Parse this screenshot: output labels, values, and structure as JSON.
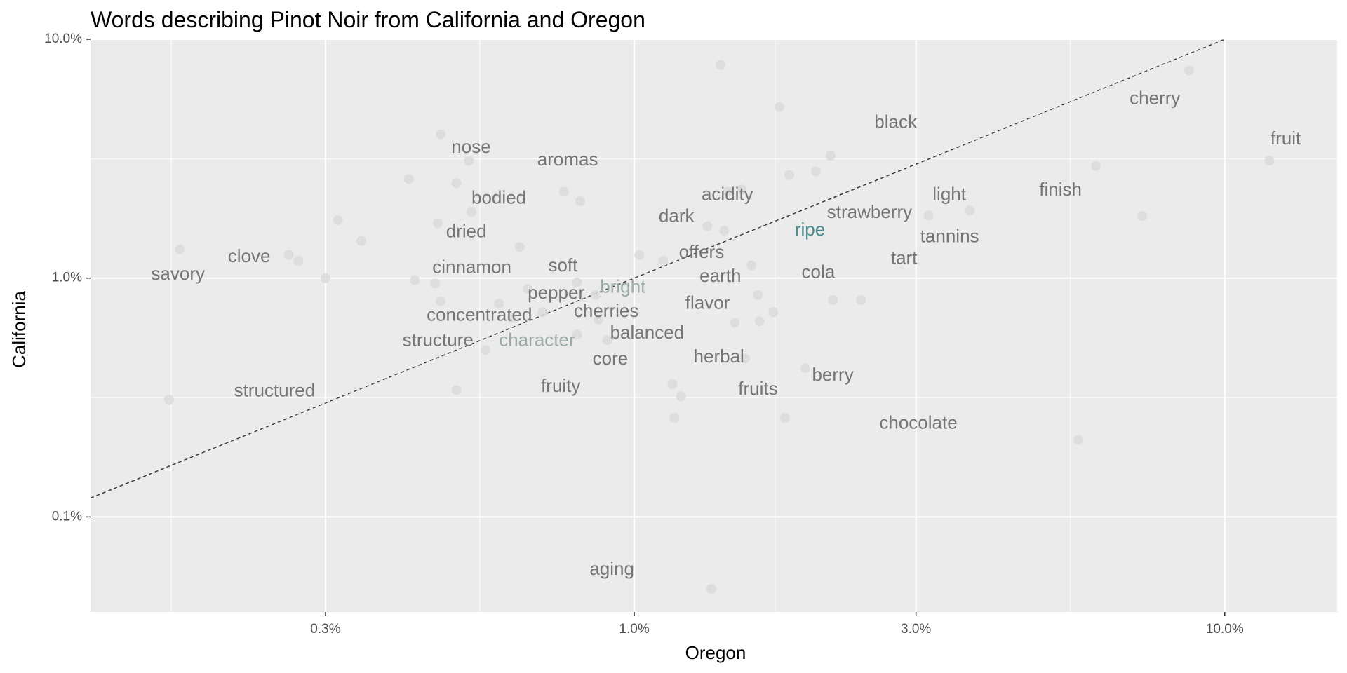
{
  "chart_data": {
    "type": "scatter",
    "title": "Words describing Pinot Noir from California and Oregon",
    "xlabel": "Oregon",
    "ylabel": "California",
    "x_scale": "log10",
    "y_scale": "log10",
    "xlim": [
      0.12,
      15.5
    ],
    "ylim": [
      0.04,
      10.0
    ],
    "x_ticks": [
      {
        "value": 0.3,
        "label": "0.3%"
      },
      {
        "value": 1.0,
        "label": "1.0%"
      },
      {
        "value": 3.0,
        "label": "3.0%"
      },
      {
        "value": 10.0,
        "label": "10.0%"
      }
    ],
    "y_ticks": [
      {
        "value": 0.1,
        "label": "0.1%"
      },
      {
        "value": 1.0,
        "label": "1.0%"
      },
      {
        "value": 10.0,
        "label": "10.0%"
      }
    ],
    "grid": true,
    "reference_line": "y = x",
    "colors": {
      "panel": "#ebebeb",
      "grid": "#ffffff",
      "point": "#dadada",
      "word": "#757575",
      "word_teal": "#4a8a8a",
      "word_pale": "#9aaaa5",
      "line": "#333333"
    },
    "points": [
      {
        "x": 0.17,
        "y": 1.32
      },
      {
        "x": 0.163,
        "y": 0.31
      },
      {
        "x": 0.26,
        "y": 1.25
      },
      {
        "x": 0.27,
        "y": 1.18
      },
      {
        "x": 0.3,
        "y": 1.0
      },
      {
        "x": 0.315,
        "y": 1.75
      },
      {
        "x": 0.345,
        "y": 1.43
      },
      {
        "x": 0.415,
        "y": 2.6
      },
      {
        "x": 0.425,
        "y": 0.98
      },
      {
        "x": 0.46,
        "y": 0.95
      },
      {
        "x": 0.465,
        "y": 1.7
      },
      {
        "x": 0.47,
        "y": 0.8
      },
      {
        "x": 0.47,
        "y": 4.0
      },
      {
        "x": 0.5,
        "y": 0.34
      },
      {
        "x": 0.5,
        "y": 2.5
      },
      {
        "x": 0.525,
        "y": 3.1
      },
      {
        "x": 0.53,
        "y": 1.9
      },
      {
        "x": 0.56,
        "y": 0.5
      },
      {
        "x": 0.59,
        "y": 0.78
      },
      {
        "x": 0.62,
        "y": 0.68
      },
      {
        "x": 0.64,
        "y": 1.35
      },
      {
        "x": 0.66,
        "y": 0.9
      },
      {
        "x": 0.7,
        "y": 0.72
      },
      {
        "x": 0.76,
        "y": 2.3
      },
      {
        "x": 0.8,
        "y": 0.58
      },
      {
        "x": 0.8,
        "y": 0.96
      },
      {
        "x": 0.81,
        "y": 2.1
      },
      {
        "x": 0.86,
        "y": 0.85
      },
      {
        "x": 0.87,
        "y": 0.67
      },
      {
        "x": 0.9,
        "y": 0.55
      },
      {
        "x": 1.02,
        "y": 1.25
      },
      {
        "x": 1.12,
        "y": 1.18
      },
      {
        "x": 1.16,
        "y": 0.36
      },
      {
        "x": 1.17,
        "y": 0.26
      },
      {
        "x": 1.2,
        "y": 0.32
      },
      {
        "x": 1.33,
        "y": 1.65
      },
      {
        "x": 1.35,
        "y": 0.05
      },
      {
        "x": 1.4,
        "y": 7.8
      },
      {
        "x": 1.42,
        "y": 1.58
      },
      {
        "x": 1.44,
        "y": 2.3
      },
      {
        "x": 1.48,
        "y": 0.65
      },
      {
        "x": 1.52,
        "y": 2.35
      },
      {
        "x": 1.54,
        "y": 0.46
      },
      {
        "x": 1.58,
        "y": 1.13
      },
      {
        "x": 1.62,
        "y": 0.85
      },
      {
        "x": 1.63,
        "y": 0.66
      },
      {
        "x": 1.72,
        "y": 0.72
      },
      {
        "x": 1.76,
        "y": 5.2
      },
      {
        "x": 1.8,
        "y": 0.26
      },
      {
        "x": 1.83,
        "y": 2.7
      },
      {
        "x": 1.95,
        "y": 0.42
      },
      {
        "x": 2.03,
        "y": 2.8
      },
      {
        "x": 2.15,
        "y": 3.25
      },
      {
        "x": 2.17,
        "y": 0.81
      },
      {
        "x": 2.42,
        "y": 0.81
      },
      {
        "x": 3.15,
        "y": 1.83
      },
      {
        "x": 3.7,
        "y": 1.92
      },
      {
        "x": 5.65,
        "y": 0.21
      },
      {
        "x": 6.05,
        "y": 2.95
      },
      {
        "x": 7.25,
        "y": 1.82
      },
      {
        "x": 8.7,
        "y": 7.4
      },
      {
        "x": 11.9,
        "y": 3.1
      }
    ],
    "labels": [
      {
        "text": "savory",
        "x": 0.152,
        "y": 1.03,
        "color": "word"
      },
      {
        "text": "clove",
        "x": 0.205,
        "y": 1.22,
        "color": "word"
      },
      {
        "text": "structured",
        "x": 0.21,
        "y": 0.335,
        "color": "word"
      },
      {
        "text": "nose",
        "x": 0.49,
        "y": 3.5,
        "color": "word"
      },
      {
        "text": "bodied",
        "x": 0.53,
        "y": 2.15,
        "color": "word"
      },
      {
        "text": "dried",
        "x": 0.48,
        "y": 1.55,
        "color": "word"
      },
      {
        "text": "cinnamon",
        "x": 0.455,
        "y": 1.1,
        "color": "word"
      },
      {
        "text": "aromas",
        "x": 0.685,
        "y": 3.1,
        "color": "word"
      },
      {
        "text": "soft",
        "x": 0.715,
        "y": 1.12,
        "color": "word"
      },
      {
        "text": "pepper",
        "x": 0.66,
        "y": 0.86,
        "color": "word"
      },
      {
        "text": "bright",
        "x": 0.875,
        "y": 0.91,
        "color": "word_pale"
      },
      {
        "text": "concentrated",
        "x": 0.445,
        "y": 0.695,
        "color": "word"
      },
      {
        "text": "cherries",
        "x": 0.79,
        "y": 0.72,
        "color": "word"
      },
      {
        "text": "structure",
        "x": 0.405,
        "y": 0.545,
        "color": "word"
      },
      {
        "text": "character",
        "x": 0.59,
        "y": 0.545,
        "color": "word_pale"
      },
      {
        "text": "balanced",
        "x": 0.91,
        "y": 0.585,
        "color": "word"
      },
      {
        "text": "core",
        "x": 0.85,
        "y": 0.455,
        "color": "word"
      },
      {
        "text": "fruity",
        "x": 0.695,
        "y": 0.35,
        "color": "word"
      },
      {
        "text": "dark",
        "x": 1.1,
        "y": 1.8,
        "color": "word"
      },
      {
        "text": "offers",
        "x": 1.19,
        "y": 1.27,
        "color": "word"
      },
      {
        "text": "earth",
        "x": 1.29,
        "y": 1.01,
        "color": "word"
      },
      {
        "text": "flavor",
        "x": 1.22,
        "y": 0.78,
        "color": "word"
      },
      {
        "text": "herbal",
        "x": 1.26,
        "y": 0.465,
        "color": "word"
      },
      {
        "text": "acidity",
        "x": 1.3,
        "y": 2.22,
        "color": "word"
      },
      {
        "text": "ripe",
        "x": 1.87,
        "y": 1.58,
        "color": "word_teal"
      },
      {
        "text": "strawberry",
        "x": 2.12,
        "y": 1.87,
        "color": "word"
      },
      {
        "text": "cola",
        "x": 1.92,
        "y": 1.05,
        "color": "word"
      },
      {
        "text": "fruits",
        "x": 1.5,
        "y": 0.34,
        "color": "word"
      },
      {
        "text": "berry",
        "x": 2.0,
        "y": 0.39,
        "color": "word"
      },
      {
        "text": "black",
        "x": 2.55,
        "y": 4.45,
        "color": "word"
      },
      {
        "text": "light",
        "x": 3.2,
        "y": 2.22,
        "color": "word"
      },
      {
        "text": "tannins",
        "x": 3.05,
        "y": 1.48,
        "color": "word"
      },
      {
        "text": "tart",
        "x": 2.72,
        "y": 1.2,
        "color": "word"
      },
      {
        "text": "chocolate",
        "x": 2.6,
        "y": 0.245,
        "color": "word"
      },
      {
        "text": "finish",
        "x": 4.85,
        "y": 2.32,
        "color": "word"
      },
      {
        "text": "cherry",
        "x": 6.9,
        "y": 5.6,
        "color": "word"
      },
      {
        "text": "fruit",
        "x": 11.95,
        "y": 3.8,
        "color": "word"
      },
      {
        "text": "aging",
        "x": 0.84,
        "y": 0.06,
        "color": "word"
      }
    ]
  }
}
